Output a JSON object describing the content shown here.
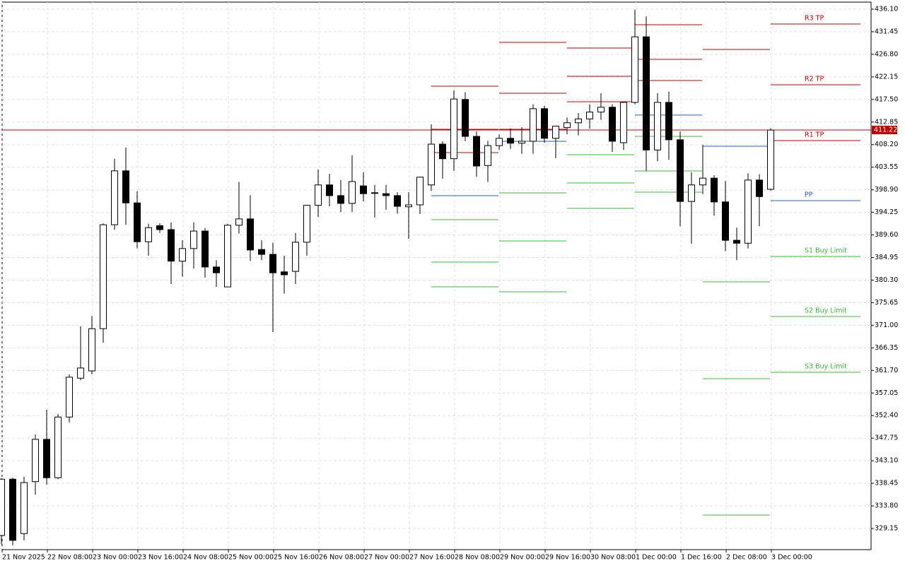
{
  "chart_data": {
    "type": "candlestick",
    "categories": [
      "21 Nov 2025",
      null,
      null,
      null,
      "22 Nov 08:00",
      null,
      null,
      null,
      "23 Nov 00:00",
      null,
      null,
      null,
      "23 Nov 16:00",
      null,
      null,
      null,
      "24 Nov 08:00",
      null,
      null,
      null,
      "25 Nov 00:00",
      null,
      null,
      null,
      "25 Nov 16:00",
      null,
      null,
      null,
      "26 Nov 08:00",
      null,
      null,
      null,
      "27 Nov 00:00",
      null,
      null,
      null,
      "27 Nov 16:00",
      null,
      null,
      null,
      "28 Nov 08:00",
      null,
      null,
      null,
      "29 Nov 00:00",
      null,
      null,
      null,
      "29 Nov 16:00",
      null,
      null,
      null,
      "30 Nov 08:00",
      null,
      null,
      null,
      "1 Dec 00:00",
      null,
      null,
      null,
      "1 Dec 16:00",
      null,
      null,
      null,
      "2 Dec 08:00",
      null,
      null,
      null,
      "3 Dec 00:00"
    ],
    "open": [
      327.7,
      339.3,
      328.1,
      338.8,
      347.5,
      339.6,
      352.1,
      360.1,
      361.6,
      370.3,
      391.7,
      402.8,
      396.2,
      388.2,
      391.5,
      390.7,
      384.2,
      386.8,
      390.4,
      383.0,
      378.9,
      391.6,
      392.9,
      386.6,
      385.6,
      382.0,
      382.1,
      388.1,
      395.7,
      399.9,
      397.7,
      396.1,
      399.7,
      398.3,
      398.1,
      397.7,
      395.4,
      395.8,
      399.9,
      408.3,
      405.3,
      417.5,
      409.9,
      403.9,
      408.0,
      409.5,
      408.5,
      408.9,
      415.6,
      409.5,
      411.7,
      412.7,
      413.5,
      414.9,
      415.9,
      408.6,
      416.9,
      430.4,
      407.1,
      416.9,
      409.2,
      396.5,
      399.9,
      401.3,
      396.4,
      388.5,
      387.9,
      400.9,
      399.0
    ],
    "high": [
      339.5,
      339.6,
      339.8,
      348.5,
      353.6,
      352.7,
      360.9,
      370.8,
      372.9,
      392.0,
      405.3,
      407.6,
      398.6,
      391.9,
      392.0,
      392.2,
      388.5,
      392.2,
      391.0,
      384.4,
      391.9,
      400.5,
      397.8,
      388.5,
      388.0,
      385.3,
      390.0,
      395.8,
      403.1,
      402.2,
      400.9,
      406.0,
      402.5,
      399.9,
      399.9,
      398.4,
      398.4,
      401.6,
      412.4,
      408.9,
      419.4,
      419.0,
      410.9,
      409.0,
      410.3,
      411.5,
      411.8,
      416.5,
      416.2,
      412.1,
      413.8,
      414.7,
      416.5,
      418.8,
      416.5,
      417.0,
      436.0,
      434.6,
      418.8,
      419.1,
      410.9,
      402.5,
      408.2,
      401.9,
      400.7,
      391.1,
      402.3,
      402.1,
      411.6
    ],
    "low": [
      325.9,
      325.7,
      326.7,
      336.1,
      338.2,
      339.3,
      351.0,
      359.7,
      360.9,
      367.4,
      390.7,
      391.7,
      386.8,
      385.3,
      390.0,
      379.5,
      381.0,
      382.7,
      380.8,
      378.9,
      378.9,
      389.9,
      384.2,
      384.4,
      369.6,
      377.5,
      379.5,
      385.3,
      393.3,
      395.5,
      394.3,
      394.3,
      396.5,
      393.2,
      394.8,
      394.0,
      388.8,
      393.9,
      398.7,
      401.2,
      402.8,
      408.9,
      401.6,
      400.5,
      407.1,
      407.3,
      406.3,
      406.3,
      408.6,
      405.4,
      410.3,
      410.1,
      411.5,
      413.3,
      406.7,
      407.1,
      416.5,
      402.8,
      404.8,
      405.1,
      391.4,
      387.8,
      398.0,
      393.6,
      386.3,
      384.4,
      386.8,
      391.4,
      398.7
    ],
    "close": [
      339.3,
      326.7,
      338.6,
      347.5,
      339.6,
      352.1,
      360.3,
      362.2,
      370.3,
      391.7,
      402.8,
      396.2,
      388.2,
      391.1,
      390.7,
      384.2,
      386.8,
      390.4,
      383.0,
      381.8,
      391.6,
      392.9,
      386.5,
      385.6,
      381.8,
      381.4,
      388.1,
      395.7,
      399.9,
      397.7,
      396.1,
      400.6,
      398.1,
      398.2,
      397.7,
      395.5,
      395.8,
      401.5,
      408.3,
      405.3,
      417.6,
      409.9,
      403.8,
      408.0,
      409.5,
      408.5,
      408.9,
      415.6,
      409.5,
      412.0,
      412.7,
      413.5,
      414.9,
      415.9,
      408.9,
      416.9,
      430.4,
      407.1,
      416.9,
      409.2,
      396.5,
      399.9,
      401.3,
      396.4,
      388.5,
      387.9,
      400.9,
      397.5,
      411.2
    ],
    "up_color": "#ffffff",
    "down_color": "#000000",
    "ylim": [
      324.79,
      437.55
    ],
    "yticks": [
      {
        "value": 436.1,
        "label": "436.10"
      },
      431.45,
      {
        "value": 426.8,
        "label": "426.80"
      },
      422.15,
      {
        "value": 417.5,
        "label": "417.50"
      },
      412.85,
      {
        "value": 408.2,
        "label": "408.20"
      },
      403.55,
      {
        "value": 398.9,
        "label": "398.90"
      },
      394.25,
      {
        "value": 389.6,
        "label": "389.60"
      },
      384.95,
      {
        "value": 380.3,
        "label": "380.30"
      },
      375.65,
      {
        "value": 371.0,
        "label": "371.00"
      },
      366.35,
      {
        "value": 361.7,
        "label": "361.70"
      },
      357.05,
      {
        "value": 352.4,
        "label": "352.40"
      },
      347.75,
      {
        "value": 343.1,
        "label": "343.10"
      },
      338.45,
      {
        "value": 333.8,
        "label": "333.80"
      },
      329.15
    ],
    "grid": true,
    "current_price": 411.22,
    "current_price_color": "#c00000",
    "level_colors": [
      "#c00000",
      "#c00000",
      "#c00000",
      "#1f5fbf",
      "#3cb83c",
      "#3cb83c",
      "#3cb83c"
    ],
    "pivot_levels": [
      [
        420.24,
        411.36,
        406.56,
        397.69,
        392.74,
        384.01,
        378.92
      ],
      [
        429.26,
        418.79,
        411.36,
        408.89,
        398.27,
        388.38,
        377.9
      ],
      [
        428.1,
        422.28,
        417.04,
        411.22,
        406.13,
        400.31,
        395.07
      ],
      [
        432.9,
        425.77,
        421.4,
        414.28,
        409.91,
        402.78,
        398.42
      ],
      [
        null,
        null,
        427.81,
        407.87,
        379.94,
        360.0,
        331.92
      ],
      [
        433.04,
        420.53,
        409.04,
        396.67,
        385.17,
        372.81,
        361.31
      ]
    ],
    "level_labels": [
      "R3 TP",
      "R2 TP",
      "R1 TP",
      "PP",
      "S1 Buy Limit",
      "S2 Buy Limit",
      "S3 Buy Limit"
    ]
  }
}
